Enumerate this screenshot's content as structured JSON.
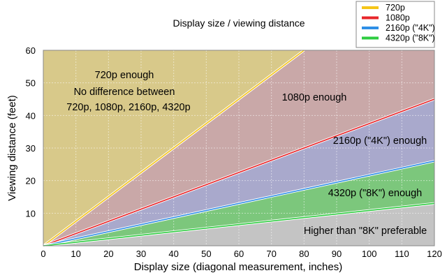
{
  "chart_data": {
    "type": "area",
    "title": "Display size / viewing distance",
    "xlabel": "Display size (diagonal measurement, inches)",
    "ylabel": "Viewing distance (feet)",
    "xlim": [
      0,
      120
    ],
    "ylim": [
      0,
      60
    ],
    "xticks": [
      0,
      10,
      20,
      30,
      40,
      50,
      60,
      70,
      80,
      90,
      100,
      110,
      120
    ],
    "yticks": [
      10,
      20,
      30,
      40,
      50,
      60
    ],
    "grid": true,
    "legend_position": "top-right",
    "series": [
      {
        "name": "720p",
        "color": "#f5c518",
        "x": [
          0,
          80
        ],
        "y": [
          0,
          60
        ]
      },
      {
        "name": "1080p",
        "color": "#e8262a",
        "x": [
          0,
          120
        ],
        "y": [
          0,
          45
        ]
      },
      {
        "name": "2160p (\"4K\")",
        "color": "#2f8fe6",
        "x": [
          0,
          120
        ],
        "y": [
          0,
          26
        ]
      },
      {
        "name": "4320p (\"8K\")",
        "color": "#2ecc40",
        "x": [
          0,
          120
        ],
        "y": [
          0,
          13
        ]
      }
    ],
    "regions": [
      {
        "label": "720p enough",
        "color": "#d8c98a"
      },
      {
        "label": "1080p enough",
        "color": "#c9a8a8"
      },
      {
        "label": "2160p (\"4K\") enough",
        "color": "#a9a9cc"
      },
      {
        "label": "4320p (\"8K\") enough",
        "color": "#7cc77c"
      },
      {
        "label": "Higher than \"8K\" preferable",
        "color": "#c4c4c4"
      }
    ],
    "annotations": [
      "720p enough",
      "No difference between",
      "720p, 1080p, 2160p, 4320p"
    ]
  }
}
